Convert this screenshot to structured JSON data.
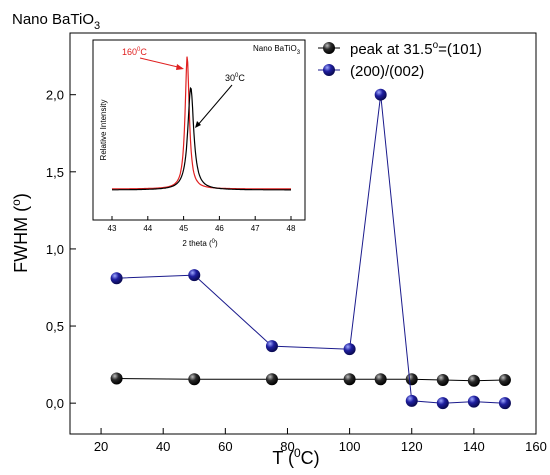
{
  "chart_data": [
    {
      "type": "line",
      "title": "Nano BaTiO",
      "title_sub": "3",
      "xlabel": "T (",
      "xlabel_sup": "0",
      "xlabel_end": "C)",
      "ylabel": "FWHM (",
      "ylabel_sup": "o",
      "ylabel_end": ")",
      "xlim": [
        10,
        160
      ],
      "ylim": [
        -0.2,
        2.4
      ],
      "xticks": [
        20,
        40,
        60,
        80,
        100,
        120,
        140,
        160
      ],
      "xtick_labels": [
        "20",
        "40",
        "60",
        "80",
        "100",
        "120",
        "140",
        "160"
      ],
      "yticks": [
        0.0,
        0.5,
        1.0,
        1.5,
        2.0
      ],
      "ytick_labels": [
        "0,0",
        "0,5",
        "1,0",
        "1,5",
        "2,0"
      ],
      "legend_position": "top-right",
      "series": [
        {
          "name": "peak at 31.5",
          "name_sup": "o",
          "name_end": "=(101)",
          "color": "#000000",
          "marker": "sphere",
          "x": [
            25,
            50,
            75,
            100,
            110,
            120,
            130,
            140,
            150
          ],
          "y": [
            0.16,
            0.155,
            0.155,
            0.155,
            0.155,
            0.155,
            0.15,
            0.145,
            0.15
          ]
        },
        {
          "name": "(200)/(002)",
          "color": "#1a1a8c",
          "marker": "sphere",
          "x": [
            25,
            50,
            75,
            100,
            110,
            120,
            130,
            140,
            150
          ],
          "y": [
            0.81,
            0.83,
            0.37,
            0.35,
            2.0,
            0.015,
            0.0,
            0.01,
            0.0
          ]
        }
      ]
    },
    {
      "type": "line",
      "inset": true,
      "title": "Nano BaTiO",
      "title_sub": "3",
      "xlabel": "2 theta (",
      "xlabel_sup": "0",
      "xlabel_end": ")",
      "ylabel": "Relative Intensity",
      "xlim": [
        43,
        48
      ],
      "xticks": [
        43,
        44,
        45,
        46,
        47,
        48
      ],
      "xtick_labels": [
        "43",
        "44",
        "45",
        "46",
        "47",
        "48"
      ],
      "annotations": [
        {
          "text": "160",
          "sup": "0",
          "end": "C",
          "color": "#e02020"
        },
        {
          "text": "30",
          "sup": "0",
          "end": "C",
          "color": "#000000"
        }
      ],
      "series": [
        {
          "label_ref": "160",
          "color": "#e02020",
          "peak_x": 45.1,
          "peak_height": 0.83,
          "width": 0.07
        },
        {
          "label_ref": "30",
          "color": "#000000",
          "peak_x": 45.2,
          "peak_height": 0.64,
          "width": 0.1
        }
      ]
    }
  ]
}
